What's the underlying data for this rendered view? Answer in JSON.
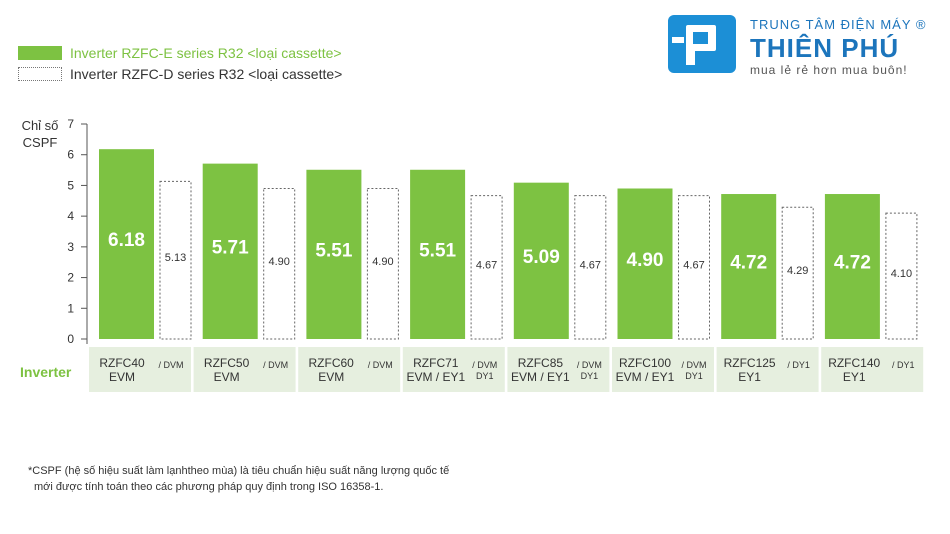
{
  "legend": [
    {
      "label": "Inverter RZFC-E series R32 <loại cassette>",
      "color": "#7dc242",
      "style": "solid"
    },
    {
      "label": "Inverter RZFC-D series R32 <loại cassette>",
      "color": "#777777",
      "style": "dotted"
    }
  ],
  "brand": {
    "line1": "TRUNG TÂM ĐIỆN MÁY",
    "registered": "®",
    "line2": "THIÊN PHÚ",
    "line3": "mua lẻ rẻ hơn mua buôn!"
  },
  "row_label": "Inverter",
  "chart_data": {
    "type": "bar",
    "ylabel": [
      "Chỉ số",
      "CSPF"
    ],
    "ylim": [
      0,
      7
    ],
    "yticks": [
      0,
      1,
      2,
      3,
      4,
      5,
      6,
      7
    ],
    "categories": [
      {
        "e_model": [
          "RZFC40",
          "EVM"
        ],
        "d_suffix": [
          "/ DVM"
        ]
      },
      {
        "e_model": [
          "RZFC50",
          "EVM"
        ],
        "d_suffix": [
          "/ DVM"
        ]
      },
      {
        "e_model": [
          "RZFC60",
          "EVM"
        ],
        "d_suffix": [
          "/ DVM"
        ]
      },
      {
        "e_model": [
          "RZFC71",
          "EVM / EY1"
        ],
        "d_suffix": [
          "/ DVM",
          "DY1"
        ]
      },
      {
        "e_model": [
          "RZFC85",
          "EVM / EY1"
        ],
        "d_suffix": [
          "/ DVM",
          "DY1"
        ]
      },
      {
        "e_model": [
          "RZFC100",
          "EVM / EY1"
        ],
        "d_suffix": [
          "/ DVM",
          "DY1"
        ]
      },
      {
        "e_model": [
          "RZFC125",
          "EY1"
        ],
        "d_suffix": [
          "/ DY1"
        ]
      },
      {
        "e_model": [
          "RZFC140",
          "EY1"
        ],
        "d_suffix": [
          "/ DY1"
        ]
      }
    ],
    "series": [
      {
        "name": "Inverter RZFC-E series R32 <loại cassette>",
        "color": "#7dc242",
        "values": [
          6.18,
          5.71,
          5.51,
          5.51,
          5.09,
          4.9,
          4.72,
          4.72
        ],
        "labels": [
          "6.18",
          "5.71",
          "5.51",
          "5.51",
          "5.09",
          "4.90",
          "4.72",
          "4.72"
        ]
      },
      {
        "name": "Inverter RZFC-D series R32 <loại cassette>",
        "color": "#ffffff",
        "values": [
          5.13,
          4.9,
          4.9,
          4.67,
          4.67,
          4.67,
          4.29,
          4.1
        ],
        "labels": [
          "5.13",
          "4.90",
          "4.90",
          "4.67",
          "4.67",
          "4.67",
          "4.29",
          "4.10"
        ]
      }
    ]
  },
  "footnote": {
    "line1": "*CSPF (hệ số hiệu suất làm lạnhtheo mùa) là tiêu chuẩn hiệu suất năng lượng quốc tế",
    "line2": "mới được tính toán theo các phương pháp quy định trong ISO 16358-1."
  }
}
